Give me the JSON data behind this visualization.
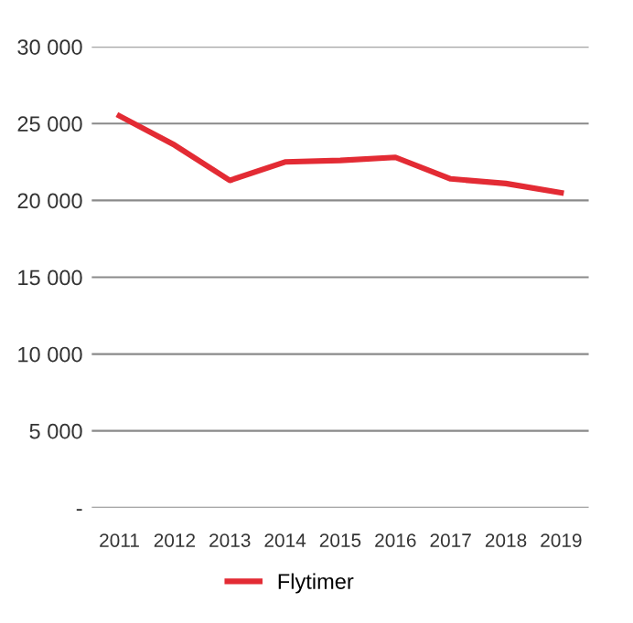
{
  "chart_data": {
    "type": "line",
    "categories": [
      "2011",
      "2012",
      "2013",
      "2014",
      "2015",
      "2016",
      "2017",
      "2018",
      "2019"
    ],
    "series": [
      {
        "name": "Flytimer",
        "color": "#e32b34",
        "values": [
          25500,
          23600,
          21300,
          22500,
          22600,
          22800,
          21400,
          21100,
          20500
        ]
      }
    ],
    "ylim": [
      0,
      30000
    ],
    "yticks": [
      {
        "value": 0,
        "label": "-"
      },
      {
        "value": 5000,
        "label": "5 000"
      },
      {
        "value": 10000,
        "label": "10 000"
      },
      {
        "value": 15000,
        "label": "15 000"
      },
      {
        "value": 20000,
        "label": "20 000"
      },
      {
        "value": 25000,
        "label": "25 000"
      },
      {
        "value": 30000,
        "label": "30 000"
      }
    ],
    "grid": "y",
    "legend": "bottom",
    "marker": "none",
    "line_style": "solid"
  }
}
